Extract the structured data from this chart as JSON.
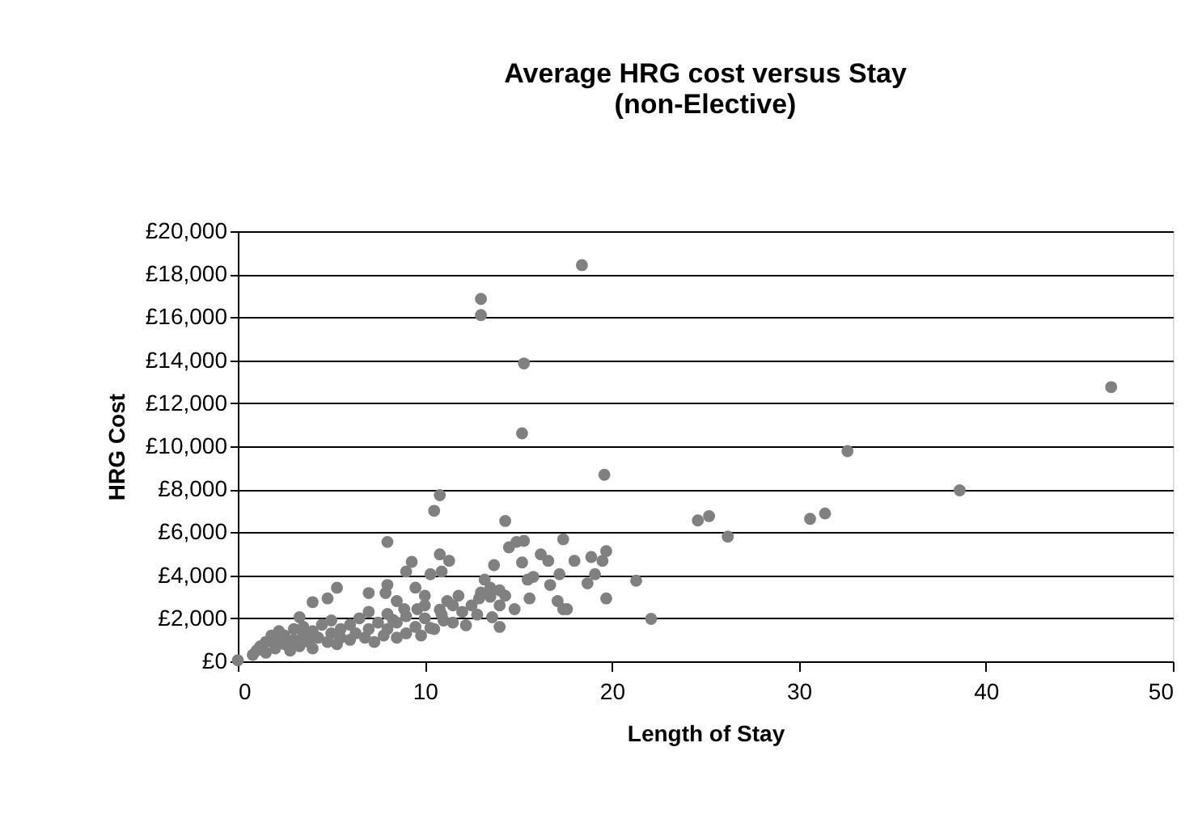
{
  "chart_data": {
    "type": "scatter",
    "title": [
      "Average HRG cost versus Stay",
      "(non-Elective)"
    ],
    "xlabel": "Length of Stay",
    "ylabel": "HRG Cost",
    "xlim": [
      0,
      50
    ],
    "xticks": [
      0,
      10,
      20,
      30,
      40,
      50
    ],
    "ylim": [
      0,
      20000
    ],
    "yticks": [
      {
        "value": 0,
        "label": "£0"
      },
      {
        "value": 2000,
        "label": "£2,000"
      },
      {
        "value": 4000,
        "label": "£4,000"
      },
      {
        "value": 6000,
        "label": "£6,000"
      },
      {
        "value": 8000,
        "label": "£8,000"
      },
      {
        "value": 10000,
        "label": "£10,000"
      },
      {
        "value": 12000,
        "label": "£12,000"
      },
      {
        "value": 14000,
        "label": "£14,000"
      },
      {
        "value": 16000,
        "label": "£16,000"
      },
      {
        "value": 18000,
        "label": "£18,000"
      },
      {
        "value": 20000,
        "label": "£20,000"
      }
    ],
    "grid": "y",
    "legend": false,
    "marker": "circle",
    "series": [
      {
        "color": "#808080",
        "x": [
          0,
          0.8,
          1.0,
          1.2,
          1.5,
          1.5,
          1.8,
          2.0,
          2.0,
          2.2,
          2.5,
          2.5,
          2.8,
          3.0,
          3.0,
          3.3,
          3.5,
          3.8,
          4.0,
          4.0,
          4.3,
          4.5,
          4.8,
          5.0,
          5.3,
          5.5,
          5.5,
          6.0,
          6.0,
          6.3,
          6.5,
          6.8,
          7.0,
          7.3,
          7.5,
          7.8,
          8.0,
          8.0,
          8.5,
          8.5,
          9.0,
          9.0,
          9.5,
          9.8,
          10.0,
          10.0,
          10.5,
          10.8,
          11.0,
          11.5,
          11.5,
          12.0,
          12.5,
          13.0,
          13.5,
          14.0,
          14.0,
          3.5,
          5.0,
          7.0,
          8.5,
          46.7,
          32.6,
          38.6,
          30.6,
          31.4,
          26.2,
          25.2,
          24.6,
          18.4,
          13.0,
          13.0,
          15.3,
          15.2,
          19.6,
          10.8,
          10.5,
          8.0,
          14.3,
          17.4,
          14.9,
          15.3,
          14.5,
          19.7,
          19.5,
          18.9,
          18.0,
          16.2,
          16.6,
          15.2,
          13.7,
          21.3,
          22.1,
          19.7,
          17.4,
          17.1,
          17.6,
          18.7,
          19.1,
          17.2,
          16.7,
          15.6,
          14.8,
          14.0,
          13.6,
          15.8,
          15.5,
          14.3,
          13.2,
          13.5,
          12.9,
          12.8,
          12.2,
          10.8,
          11.3,
          10.9,
          10.3,
          9.3,
          9.0,
          11.8,
          11.2,
          10.9,
          10.3,
          8.0,
          7.9,
          7.0,
          5.3,
          4.8,
          4.0,
          3.3,
          9.5,
          10.0,
          9.6,
          8.9,
          8.3
        ],
        "values": [
          50,
          300,
          500,
          700,
          400,
          900,
          1200,
          600,
          1000,
          1400,
          800,
          1200,
          500,
          1000,
          1500,
          700,
          1200,
          900,
          1400,
          600,
          1100,
          1700,
          900,
          1300,
          800,
          1500,
          1100,
          1000,
          1700,
          1300,
          2000,
          1100,
          1500,
          900,
          1800,
          1200,
          2200,
          1500,
          1100,
          1800,
          1300,
          2100,
          1600,
          1200,
          2000,
          2600,
          1500,
          2400,
          1900,
          2600,
          1800,
          2300,
          2600,
          3200,
          3000,
          3300,
          2600,
          1600,
          1900,
          2300,
          2800,
          12750,
          9775,
          7950,
          6625,
          6875,
          5800,
          6750,
          6550,
          18425,
          16850,
          16100,
          13850,
          10600,
          8675,
          7725,
          7000,
          5550,
          6525,
          5675,
          5550,
          5600,
          5300,
          5125,
          4675,
          4850,
          4675,
          4975,
          4675,
          4600,
          4475,
          3750,
          1975,
          2925,
          2425,
          2800,
          2425,
          3625,
          4050,
          4050,
          3550,
          2925,
          2425,
          1600,
          2050,
          3925,
          3800,
          3050,
          3800,
          3425,
          2925,
          2175,
          1675,
          4975,
          4675,
          4175,
          4050,
          4625,
          4175,
          3050,
          2800,
          2175,
          1550,
          3550,
          3175,
          3175,
          3425,
          2925,
          2750,
          2050,
          3425,
          3050,
          2425,
          2425,
          1925
        ]
      }
    ]
  }
}
